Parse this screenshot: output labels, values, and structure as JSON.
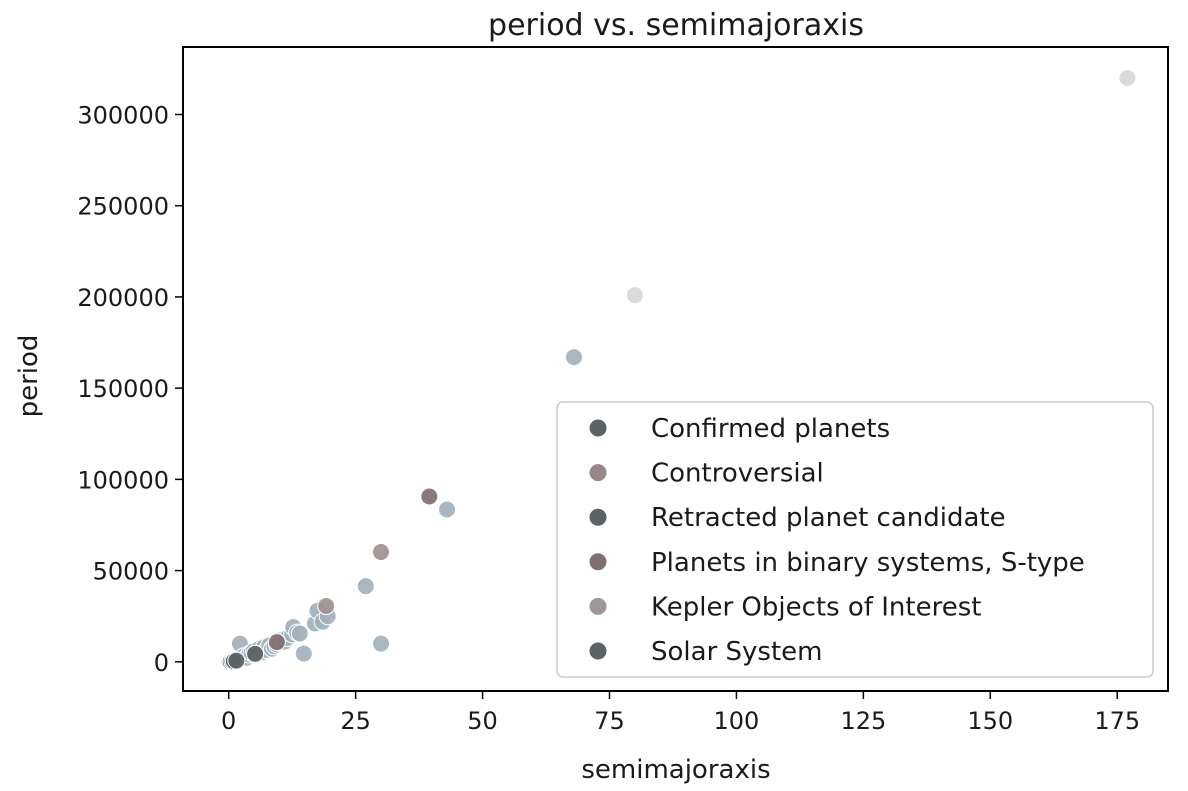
{
  "chart_data": {
    "type": "scatter",
    "title": "period vs. semimajoraxis",
    "xlabel": "semimajoraxis",
    "ylabel": "period",
    "xlim": [
      -9,
      185
    ],
    "ylim": [
      -16000,
      337000
    ],
    "xticks": [
      0,
      25,
      50,
      75,
      100,
      125,
      150,
      175
    ],
    "yticks": [
      0,
      50000,
      100000,
      150000,
      200000,
      250000,
      300000
    ],
    "xtick_labels": [
      "0",
      "25",
      "50",
      "75",
      "100",
      "125",
      "150",
      "175"
    ],
    "ytick_labels": [
      "0",
      "50000",
      "100000",
      "150000",
      "200000",
      "250000",
      "300000"
    ],
    "grid": false,
    "legend_position": "lower-right",
    "series": [
      {
        "name": "Confirmed planets",
        "color": "#a3b1bb",
        "legend_color": "#5a6466",
        "points": [
          [
            0.05,
            300
          ],
          [
            0.3,
            600
          ],
          [
            1.0,
            900
          ],
          [
            1.5,
            1500
          ],
          [
            2.0,
            2000
          ],
          [
            2.5,
            2500
          ],
          [
            2.2,
            10000
          ],
          [
            3.0,
            3000
          ],
          [
            3.5,
            2200
          ],
          [
            4.0,
            4000
          ],
          [
            4.5,
            5000
          ],
          [
            5.0,
            6000
          ],
          [
            5.5,
            4200
          ],
          [
            6.0,
            7000
          ],
          [
            6.5,
            5200
          ],
          [
            7.0,
            8000
          ],
          [
            7.5,
            6500
          ],
          [
            8.0,
            9000
          ],
          [
            8.5,
            7200
          ],
          [
            9.0,
            8500
          ],
          [
            9.5,
            9500
          ],
          [
            10.0,
            10500
          ],
          [
            10.5,
            12000
          ],
          [
            11.0,
            11000
          ],
          [
            11.5,
            13000
          ],
          [
            12.5,
            15000
          ],
          [
            12.7,
            19000
          ],
          [
            13.5,
            16000
          ],
          [
            14.0,
            15500
          ],
          [
            14.8,
            4500
          ],
          [
            17.0,
            21000
          ],
          [
            17.5,
            28000
          ],
          [
            18.5,
            22000
          ],
          [
            19.5,
            25000
          ],
          [
            27.0,
            41500
          ],
          [
            30.0,
            10000
          ],
          [
            43.0,
            83500
          ],
          [
            68.0,
            167000
          ]
        ]
      },
      {
        "name": "Controversial",
        "color": "#a09090",
        "legend_color": "#968888",
        "points": [
          [
            5.2,
            4300
          ],
          [
            19.2,
            30600
          ],
          [
            30.0,
            60200
          ]
        ]
      },
      {
        "name": "Retracted planet candidate",
        "color": "#5a6466",
        "legend_color": "#5a6466",
        "points": []
      },
      {
        "name": "Planets in binary systems, S-type",
        "color": "#806e70",
        "legend_color": "#806e70",
        "points": [
          [
            9.5,
            10800
          ],
          [
            39.5,
            90600
          ]
        ]
      },
      {
        "name": "Kepler Objects of Interest",
        "color": "#d8d6d6",
        "legend_color": "#a09898",
        "points": [
          [
            80.0,
            201000
          ],
          [
            177.0,
            320000
          ]
        ]
      },
      {
        "name": "Solar System",
        "color": "#5a6466",
        "legend_color": "#5a6466",
        "points": [
          [
            0.39,
            88
          ],
          [
            0.72,
            225
          ],
          [
            1.0,
            365
          ],
          [
            1.52,
            687
          ],
          [
            5.2,
            4333
          ]
        ]
      }
    ]
  }
}
